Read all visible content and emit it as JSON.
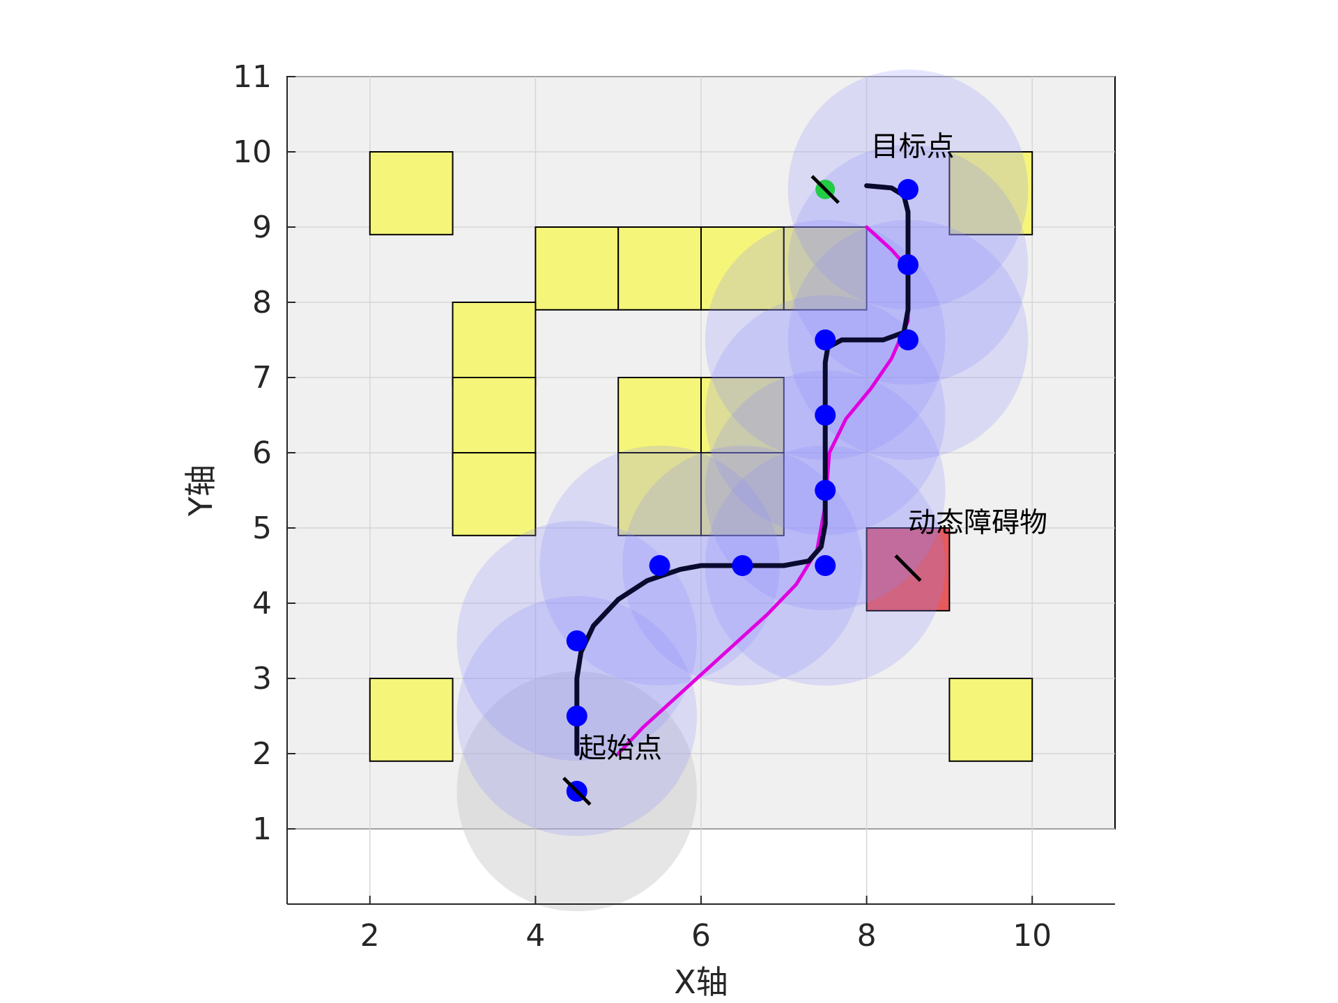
{
  "chart_data": {
    "type": "scatter",
    "xlabel": "X轴",
    "ylabel": "Y轴",
    "xlim": [
      1,
      11
    ],
    "ylim": [
      0,
      11
    ],
    "xticks": [
      "2",
      "4",
      "6",
      "8",
      "10"
    ],
    "yticks": [
      "1",
      "2",
      "3",
      "4",
      "5",
      "6",
      "7",
      "8",
      "9",
      "10",
      "11"
    ],
    "grid": true,
    "map_region": {
      "x": [
        1,
        11
      ],
      "y": [
        1,
        11
      ]
    },
    "static_obstacles": [
      [
        2,
        9
      ],
      [
        9,
        9
      ],
      [
        4,
        8
      ],
      [
        5,
        8
      ],
      [
        6,
        8
      ],
      [
        7,
        8
      ],
      [
        3,
        7
      ],
      [
        3,
        6
      ],
      [
        3,
        5
      ],
      [
        5,
        6
      ],
      [
        6,
        6
      ],
      [
        5,
        5
      ],
      [
        6,
        5
      ],
      [
        2,
        2
      ],
      [
        9,
        2
      ]
    ],
    "dynamic_obstacle": {
      "cell": [
        8,
        4
      ],
      "heading_end": [
        8.65,
        4.3
      ],
      "center": [
        8.5,
        4.5
      ]
    },
    "robot_positions": [
      [
        4.5,
        2.5
      ],
      [
        4.5,
        3.5
      ],
      [
        5.5,
        4.5
      ],
      [
        6.5,
        4.5
      ],
      [
        7.5,
        4.5
      ],
      [
        7.5,
        5.5
      ],
      [
        7.5,
        6.5
      ],
      [
        7.5,
        7.5
      ],
      [
        8.5,
        7.5
      ],
      [
        8.5,
        8.5
      ],
      [
        8.5,
        9.5
      ]
    ],
    "start_point": [
      4.5,
      1.5
    ],
    "goal_point": [
      7.5,
      9.5
    ],
    "sensing_radius": 1.45,
    "planned_path": [
      [
        4.5,
        2.0
      ],
      [
        4.5,
        3.0
      ],
      [
        4.55,
        3.35
      ],
      [
        4.7,
        3.7
      ],
      [
        5.0,
        4.05
      ],
      [
        5.35,
        4.3
      ],
      [
        5.75,
        4.45
      ],
      [
        6.0,
        4.5
      ],
      [
        7.0,
        4.5
      ],
      [
        7.3,
        4.56
      ],
      [
        7.45,
        4.75
      ],
      [
        7.5,
        5.05
      ],
      [
        7.5,
        7.2
      ],
      [
        7.53,
        7.4
      ],
      [
        7.7,
        7.5
      ],
      [
        8.2,
        7.5
      ],
      [
        8.45,
        7.6
      ],
      [
        8.5,
        7.9
      ],
      [
        8.5,
        9.2
      ],
      [
        8.45,
        9.42
      ],
      [
        8.3,
        9.52
      ],
      [
        8.0,
        9.55
      ]
    ],
    "smoothed_path": [
      [
        5.0,
        2.0
      ],
      [
        5.3,
        2.35
      ],
      [
        5.8,
        2.85
      ],
      [
        6.3,
        3.35
      ],
      [
        6.8,
        3.85
      ],
      [
        7.15,
        4.25
      ],
      [
        7.4,
        4.7
      ],
      [
        7.5,
        5.3
      ],
      [
        7.55,
        6.0
      ],
      [
        7.75,
        6.45
      ],
      [
        8.05,
        6.85
      ],
      [
        8.3,
        7.25
      ],
      [
        8.5,
        7.75
      ],
      [
        8.5,
        8.45
      ],
      [
        8.3,
        8.7
      ],
      [
        8.0,
        9.0
      ]
    ],
    "annotations": [
      {
        "text": "起始点",
        "x": 4.52,
        "y": 1.95
      },
      {
        "text": "目标点",
        "x": 8.05,
        "y": 9.95
      },
      {
        "text": "动态障碍物",
        "x": 8.5,
        "y": 4.95
      }
    ],
    "colors": {
      "background_map": "#f0f0f0",
      "obstacle": "#f5f57a",
      "dynamic_obstacle": "#e65a5e",
      "robot": "#0000ff",
      "sensing_area": "#8888ff",
      "start_area": "#c8c8c8",
      "planned_path": "#0a0a2e",
      "smoothed_path": "#e000e0",
      "goal": "#22cc44"
    }
  }
}
